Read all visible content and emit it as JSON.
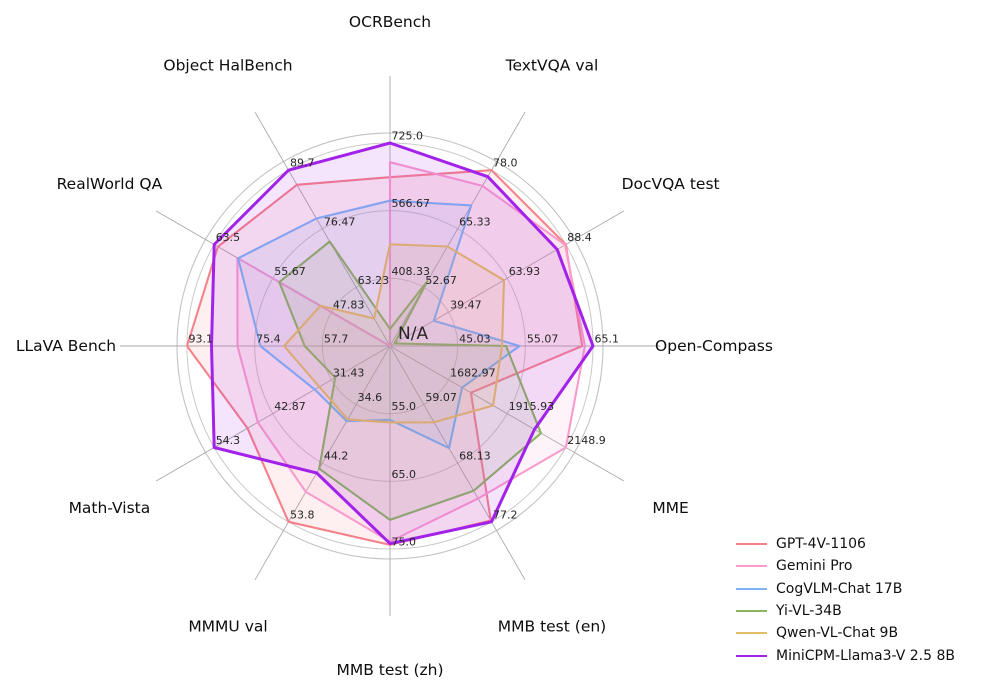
{
  "figure": {
    "background": "#ffffff",
    "center_label": "N/A",
    "grid_color": "#c9c9c9",
    "boundary_color": "#c2c2c2",
    "spoke_color": "#a9a9a9"
  },
  "chart_data": {
    "type": "radar",
    "title": "",
    "legend_position": "lower right",
    "grid": true,
    "rings_per_axis": 3,
    "axes": [
      {
        "label": "OCRBench",
        "min": 250,
        "max": 725,
        "ticks": [
          "408.33",
          "566.67",
          "725.0"
        ]
      },
      {
        "label": "TextVQA val",
        "min": 40,
        "max": 78,
        "ticks": [
          "52.67",
          "65.33",
          "78.0"
        ]
      },
      {
        "label": "DocVQA test",
        "min": 15,
        "max": 88.4,
        "ticks": [
          "39.47",
          "63.93",
          "88.4"
        ]
      },
      {
        "label": "Open-Compass",
        "min": 35,
        "max": 65.1,
        "ticks": [
          "45.03",
          "55.07",
          "65.1"
        ]
      },
      {
        "label": "MME",
        "min": 1450,
        "max": 2148.9,
        "ticks": [
          "1682.97",
          "1915.93",
          "2148.9"
        ]
      },
      {
        "label": "MMB test (en)",
        "min": 50,
        "max": 77.2,
        "ticks": [
          "59.07",
          "68.13",
          "77.2"
        ]
      },
      {
        "label": "MMB test (zh)",
        "min": 45,
        "max": 75,
        "ticks": [
          "55.0",
          "65.0",
          "75.0"
        ]
      },
      {
        "label": "MMMU val",
        "min": 25,
        "max": 53.8,
        "ticks": [
          "34.6",
          "44.2",
          "53.8"
        ]
      },
      {
        "label": "Math-Vista",
        "min": 20,
        "max": 54.3,
        "ticks": [
          "31.43",
          "42.87",
          "54.3"
        ]
      },
      {
        "label": "LLaVA Bench",
        "min": 40,
        "max": 93.1,
        "ticks": [
          "57.7",
          "75.4",
          "93.1"
        ]
      },
      {
        "label": "RealWorld QA",
        "min": 40,
        "max": 63.5,
        "ticks": [
          "47.83",
          "55.67",
          "63.5"
        ]
      },
      {
        "label": "Object HalBench",
        "min": 50,
        "max": 89.7,
        "ticks": [
          "63.23",
          "76.47",
          "89.7"
        ]
      }
    ],
    "series": [
      {
        "name": "GPT-4V-1106",
        "color": "#F5818A",
        "values": [
          645,
          78.0,
          88.4,
          63.5,
          1771.5,
          77.0,
          74.4,
          53.8,
          47.8,
          93.1,
          63.0,
          86.4
        ]
      },
      {
        "name": "Gemini Pro",
        "color": "#F99CCD",
        "values": [
          680,
          74.6,
          88.1,
          63.9,
          2148.9,
          73.6,
          73.9,
          48.9,
          45.8,
          79.9,
          60.4,
          null
        ]
      },
      {
        "name": "CogVLM-Chat 17B",
        "color": "#7FB5F2",
        "values": [
          590,
          70.4,
          33.3,
          54.2,
          1736.6,
          65.8,
          55.9,
          37.3,
          34.7,
          73.9,
          60.3,
          78.8
        ]
      },
      {
        "name": "Yi-VL-34B",
        "color": "#8BB561",
        "values": [
          290,
          54.0,
          16.9,
          52.2,
          2050.2,
          72.4,
          70.7,
          45.1,
          30.7,
          62.3,
          54.8,
          73.6
        ]
      },
      {
        "name": "Qwen-VL-Chat 9B",
        "color": "#E3BD66",
        "values": [
          488,
          61.5,
          62.6,
          51.6,
          1860.0,
          61.8,
          56.3,
          37.0,
          33.8,
          67.7,
          49.3,
          56.2
        ]
      },
      {
        "name": "MiniCPM-Llama3-V 2.5 8B",
        "color": "#A322EA",
        "values": [
          725,
          76.6,
          84.8,
          65.1,
          2024.6,
          77.2,
          74.2,
          45.8,
          54.3,
          86.7,
          63.5,
          89.7
        ]
      }
    ]
  }
}
